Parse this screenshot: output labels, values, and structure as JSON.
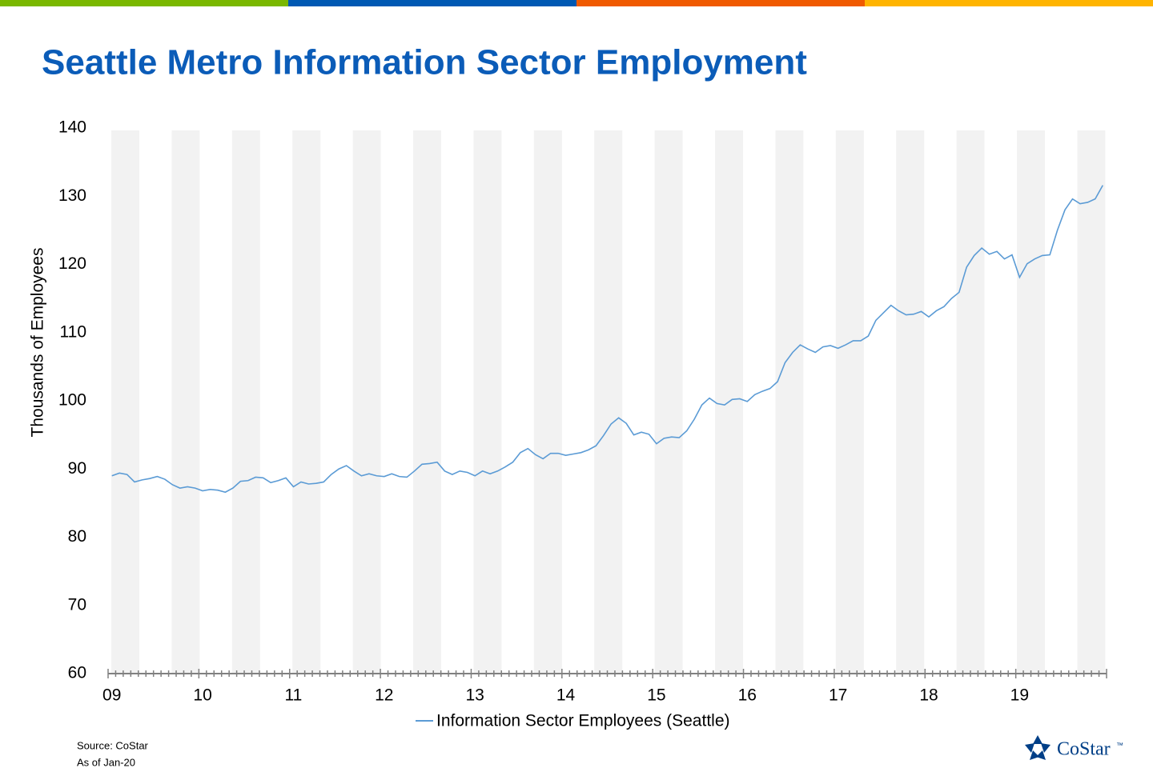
{
  "chart_data": {
    "type": "line",
    "title": "Seattle Metro Information Sector Employment",
    "y_label": "Thousands of Employees",
    "categories": [
      "09",
      null,
      null,
      null,
      null,
      null,
      null,
      null,
      null,
      null,
      null,
      null,
      "10",
      null,
      null,
      null,
      null,
      null,
      null,
      null,
      null,
      null,
      null,
      null,
      "11",
      null,
      null,
      null,
      null,
      null,
      null,
      null,
      null,
      null,
      null,
      null,
      "12",
      null,
      null,
      null,
      null,
      null,
      null,
      null,
      null,
      null,
      null,
      null,
      "13",
      null,
      null,
      null,
      null,
      null,
      null,
      null,
      null,
      null,
      null,
      null,
      "14",
      null,
      null,
      null,
      null,
      null,
      null,
      null,
      null,
      null,
      null,
      null,
      "15",
      null,
      null,
      null,
      null,
      null,
      null,
      null,
      null,
      null,
      null,
      null,
      "16",
      null,
      null,
      null,
      null,
      null,
      null,
      null,
      null,
      null,
      null,
      null,
      "17",
      null,
      null,
      null,
      null,
      null,
      null,
      null,
      null,
      null,
      null,
      null,
      "18",
      null,
      null,
      null,
      null,
      null,
      null,
      null,
      null,
      null,
      null,
      null,
      "19",
      null,
      null,
      null,
      null,
      null,
      null,
      null,
      null,
      null,
      null,
      null
    ],
    "series": [
      {
        "name": "Information Sector Employees (Seattle)",
        "color": "#5b9bd5",
        "values": [
          89,
          89.4,
          89.2,
          88.1,
          88.4,
          88.6,
          88.9,
          88.5,
          87.7,
          87.2,
          87.4,
          87.2,
          86.8,
          87.0,
          86.9,
          86.6,
          87.2,
          88.2,
          88.3,
          88.8,
          88.7,
          88.0,
          88.3,
          88.7,
          87.4,
          88.1,
          87.8,
          87.9,
          88.1,
          89.2,
          90.0,
          90.5,
          89.7,
          89.0,
          89.3,
          89.0,
          88.9,
          89.3,
          88.9,
          88.8,
          89.7,
          90.7,
          90.8,
          91.0,
          89.7,
          89.2,
          89.7,
          89.5,
          89.0,
          89.7,
          89.3,
          89.7,
          90.3,
          91.0,
          92.4,
          93.0,
          92.1,
          91.5,
          92.3,
          92.3,
          92.0,
          92.2,
          92.4,
          92.8,
          93.4,
          94.9,
          96.6,
          97.5,
          96.7,
          95.0,
          95.4,
          95.1,
          93.7,
          94.5,
          94.7,
          94.6,
          95.6,
          97.3,
          99.4,
          100.4,
          99.6,
          99.4,
          100.2,
          100.3,
          99.9,
          100.9,
          101.4,
          101.8,
          102.8,
          105.6,
          107.1,
          108.2,
          107.6,
          107.1,
          107.9,
          108.1,
          107.7,
          108.2,
          108.8,
          108.8,
          109.5,
          111.8,
          112.9,
          114.0,
          113.2,
          112.6,
          112.7,
          113.1,
          112.3,
          113.2,
          113.8,
          115.0,
          115.9,
          119.6,
          121.3,
          122.4,
          121.5,
          121.9,
          120.8,
          121.4,
          118.1,
          120.1,
          120.8,
          121.3,
          121.4,
          125.0,
          128.0,
          129.6,
          128.9,
          129.1,
          129.6,
          131.6
        ]
      }
    ],
    "ylim": [
      60,
      140
    ],
    "yticks": [
      60,
      70,
      80,
      90,
      100,
      110,
      120,
      130,
      140
    ],
    "legend": "bottom",
    "source": "Source: CoStar",
    "as_of": "As of Jan-20",
    "logo": "CoStar",
    "logo_mark": "™"
  }
}
